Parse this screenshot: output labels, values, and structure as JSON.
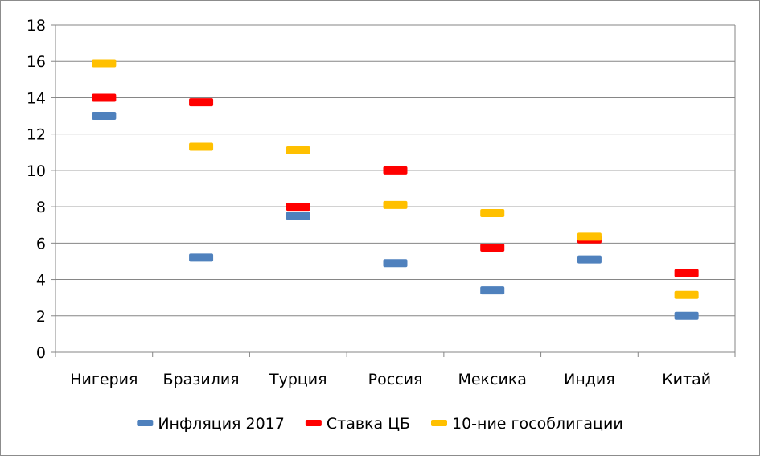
{
  "chart_data": {
    "type": "scatter",
    "marker": "dash",
    "categories": [
      "Нигерия",
      "Бразилия",
      "Турция",
      "Россия",
      "Мексика",
      "Индия",
      "Китай"
    ],
    "series": [
      {
        "name": "Инфляция 2017",
        "color": "#4f81bd",
        "values": [
          13.0,
          5.2,
          7.5,
          4.9,
          3.4,
          5.1,
          2.0
        ]
      },
      {
        "name": "Ставка ЦБ",
        "color": "#ff0000",
        "values": [
          14.0,
          13.75,
          8.0,
          10.0,
          5.75,
          6.2,
          4.35
        ]
      },
      {
        "name": "10-ние гособлигации",
        "color": "#ffc000",
        "values": [
          15.9,
          11.3,
          11.1,
          8.1,
          7.65,
          6.35,
          3.15
        ]
      }
    ],
    "ylim": [
      0,
      18
    ],
    "yticks": [
      0,
      2,
      4,
      6,
      8,
      10,
      12,
      14,
      16,
      18
    ],
    "grid": true,
    "legend": "bottom"
  }
}
